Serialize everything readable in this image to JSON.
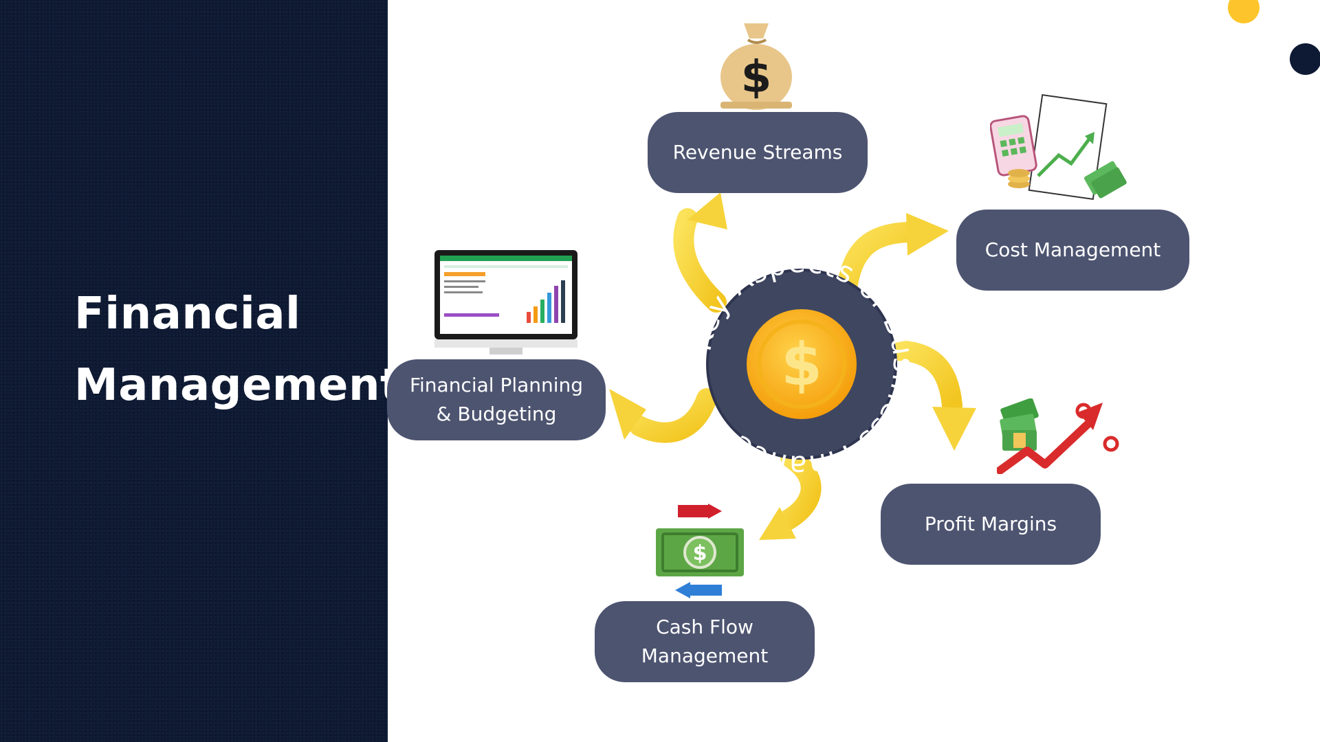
{
  "title": {
    "line1": "Financial",
    "line2": "Management"
  },
  "center": {
    "label": "Key Aspects of Business Finance",
    "symbol": "$"
  },
  "nodes": {
    "revenue": "Revenue Streams",
    "cost": "Cost Management",
    "planning": "Financial Planning\n& Budgeting",
    "profit": "Profit  Margins",
    "cashflow": "Cash Flow\nManagement"
  },
  "icons": {
    "revenue": "money-bag-icon",
    "cost": "calculator-chart-icon",
    "planning": "spreadsheet-monitor-icon",
    "profit": "profit-trend-icon",
    "cashflow": "cash-exchange-icon"
  },
  "colors": {
    "sidebar": "#0e1a33",
    "node": "#4d5470",
    "arrow": "#f7d43a",
    "coin": "#f6a91b",
    "accent_dot_1": "#fdc52b",
    "accent_dot_2": "#0e1a33"
  }
}
